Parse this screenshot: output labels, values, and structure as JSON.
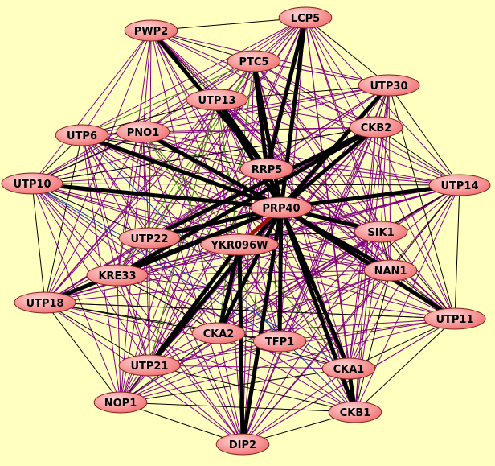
{
  "colors": {
    "background": "#ffffc0",
    "node_fill_light": "#ffd0d0",
    "node_fill_dark": "#f07070",
    "node_border": "#802020",
    "edge_purple": "#800080",
    "edge_black": "#000000",
    "edge_green": "#3a7a10",
    "edge_blue": "#2030a0",
    "edge_red": "#a01010"
  },
  "nodes": [
    "LCP5",
    "PWP2",
    "PTC5",
    "UTP30",
    "UTP13",
    "CKB2",
    "UTP6",
    "PNO1",
    "RRP5",
    "UTP10",
    "UTP14",
    "PRP40",
    "SIK1",
    "UTP22",
    "YKR096W",
    "NAN1",
    "KRE33",
    "UTP18",
    "UTP11",
    "CKA2",
    "TFP1",
    "UTP21",
    "CKA1",
    "NOP1",
    "CKB1",
    "DIP2"
  ],
  "edges": {
    "thick": {
      "PRP40": [
        "LCP5",
        "UTP13",
        "RRP5",
        "UTP10",
        "UTP14",
        "UTP6",
        "KRE33",
        "UTP18",
        "CKB2",
        "SIK1",
        "NAN1",
        "UTP11",
        "CKA1",
        "CKB1",
        "TFP1",
        "DIP2",
        "UTP21",
        "CKA2",
        "UTP22",
        "PTC5",
        "UTP30",
        "PNO1"
      ],
      "RRP5": [
        "PWP2",
        "UTP13",
        "PTC5",
        "LCP5"
      ],
      "YKR096W": [
        "UTP21",
        "DIP2",
        "CKA2"
      ],
      "CKB2": [
        "UTP22",
        "KRE33"
      ],
      "CKA1": [
        "CKB1"
      ]
    },
    "red": {
      "PRP40": [
        "YKR096W"
      ]
    },
    "black": {
      "UTP10": [
        "UTP6",
        "PNO1",
        "UTP18",
        "UTP22",
        "CKB2",
        "UTP14"
      ],
      "UTP6": [
        "PNO1",
        "UTP13",
        "RRP5",
        "UTP18"
      ],
      "UTP18": [
        "KRE33",
        "UTP21",
        "NOP1",
        "CKA2",
        "TFP1",
        "UTP11"
      ],
      "NOP1": [
        "CKB1",
        "CKA1",
        "UTP21",
        "DIP2",
        "CKA2"
      ],
      "CKB1": [
        "DIP2",
        "UTP11",
        "NAN1",
        "UTP21"
      ],
      "UTP11": [
        "UTP14",
        "NAN1",
        "SIK1",
        "CKA1",
        "UTP30"
      ],
      "UTP14": [
        "UTP30",
        "CKB2",
        "SIK1",
        "NAN1"
      ],
      "UTP30": [
        "LCP5",
        "CKB2",
        "UTP13"
      ],
      "PWP2": [
        "LCP5",
        "PTC5",
        "UTP13"
      ],
      "CKA2": [
        "TFP1",
        "CKA1",
        "KRE33"
      ],
      "SIK1": [
        "NAN1",
        "UTP22"
      ]
    },
    "green": {
      "PTC5": [
        "UTP22",
        "KRE33",
        "CKA2",
        "UTP6"
      ],
      "UTP13": [
        "UTP21",
        "YKR096W"
      ],
      "PNO1": [
        "CKA1",
        "TFP1",
        "NAN1"
      ]
    },
    "blue": {
      "UTP10": [
        "TFP1",
        "CKA1"
      ],
      "UTP6": [
        "CKB1"
      ]
    },
    "purple": {
      "LCP5": [
        "UTP6",
        "PNO1",
        "UTP10",
        "UTP22",
        "KRE33",
        "UTP18",
        "UTP21",
        "NOP1",
        "CKA2",
        "TFP1",
        "CKA1",
        "CKB1",
        "NAN1",
        "SIK1",
        "UTP14",
        "UTP11",
        "CKB2",
        "UTP13",
        "PTC5"
      ],
      "PWP2": [
        "UTP30",
        "CKB2",
        "UTP14",
        "SIK1",
        "NAN1",
        "UTP11",
        "CKA1",
        "CKB1",
        "TFP1",
        "UTP22",
        "KRE33",
        "UTP18",
        "UTP10",
        "UTP6",
        "PNO1",
        "DIP2"
      ],
      "PTC5": [
        "UTP30",
        "CKB2",
        "UTP14",
        "SIK1",
        "NAN1",
        "UTP11",
        "CKA1",
        "CKB1",
        "UTP21",
        "NOP1",
        "UTP18",
        "UTP10",
        "PNO1",
        "DIP2"
      ],
      "UTP30": [
        "UTP6",
        "PNO1",
        "UTP10",
        "UTP22",
        "KRE33",
        "UTP18",
        "UTP21",
        "NOP1",
        "CKA2",
        "TFP1",
        "CKA1",
        "CKB1",
        "DIP2",
        "SIK1",
        "NAN1",
        "PTC5"
      ],
      "UTP13": [
        "CKB2",
        "UTP14",
        "SIK1",
        "NAN1",
        "UTP11",
        "CKA1",
        "CKB1",
        "DIP2",
        "NOP1",
        "UTP18",
        "UTP10",
        "KRE33",
        "TFP1"
      ],
      "CKB2": [
        "UTP6",
        "PNO1",
        "UTP10",
        "UTP18",
        "UTP21",
        "NOP1",
        "CKA2",
        "TFP1",
        "CKA1",
        "CKB1",
        "DIP2",
        "NAN1",
        "UTP11"
      ],
      "UTP6": [
        "UTP14",
        "SIK1",
        "NAN1",
        "UTP11",
        "CKA1",
        "CKA2",
        "UTP21",
        "NOP1",
        "DIP2",
        "KRE33",
        "UTP22",
        "YKR096W"
      ],
      "PNO1": [
        "UTP14",
        "SIK1",
        "UTP11",
        "CKB1",
        "DIP2",
        "NOP1",
        "UTP21",
        "UTP18",
        "KRE33",
        "UTP22",
        "RRP5"
      ],
      "UTP10": [
        "SIK1",
        "NAN1",
        "UTP11",
        "CKB1",
        "DIP2",
        "NOP1",
        "UTP21",
        "CKA2",
        "KRE33",
        "RRP5",
        "YKR096W"
      ],
      "UTP14": [
        "UTP22",
        "KRE33",
        "UTP18",
        "UTP21",
        "NOP1",
        "CKA2",
        "TFP1",
        "CKA1",
        "CKB1",
        "DIP2",
        "RRP5",
        "YKR096W"
      ],
      "SIK1": [
        "UTP22",
        "KRE33",
        "UTP18",
        "UTP21",
        "NOP1",
        "CKA2",
        "TFP1",
        "CKA1",
        "CKB1",
        "DIP2",
        "RRP5"
      ],
      "NAN1": [
        "UTP22",
        "KRE33",
        "UTP18",
        "UTP21",
        "NOP1",
        "CKA2",
        "TFP1",
        "CKA1",
        "DIP2",
        "RRP5",
        "YKR096W"
      ],
      "UTP11": [
        "UTP22",
        "KRE33",
        "UTP18",
        "UTP21",
        "NOP1",
        "CKA2",
        "TFP1",
        "DIP2",
        "RRP5",
        "UTP13"
      ],
      "UTP18": [
        "UTP22",
        "CKA1",
        "CKB1",
        "DIP2",
        "RRP5",
        "YKR096W",
        "UTP14"
      ],
      "UTP21": [
        "CKA1",
        "TFP1",
        "DIP2",
        "KRE33",
        "UTP22",
        "RRP5"
      ],
      "NOP1": [
        "KRE33",
        "UTP22",
        "TFP1",
        "RRP5",
        "YKR096W"
      ],
      "DIP2": [
        "TFP1",
        "CKA1",
        "KRE33",
        "UTP22",
        "RRP5",
        "UTP11"
      ],
      "KRE33": [
        "UTP22",
        "YKR096W",
        "TFP1",
        "CKA1",
        "CKB1"
      ],
      "RRP5": [
        "UTP22",
        "CKA2",
        "CKA1",
        "CKB1",
        "TFP1"
      ]
    }
  }
}
